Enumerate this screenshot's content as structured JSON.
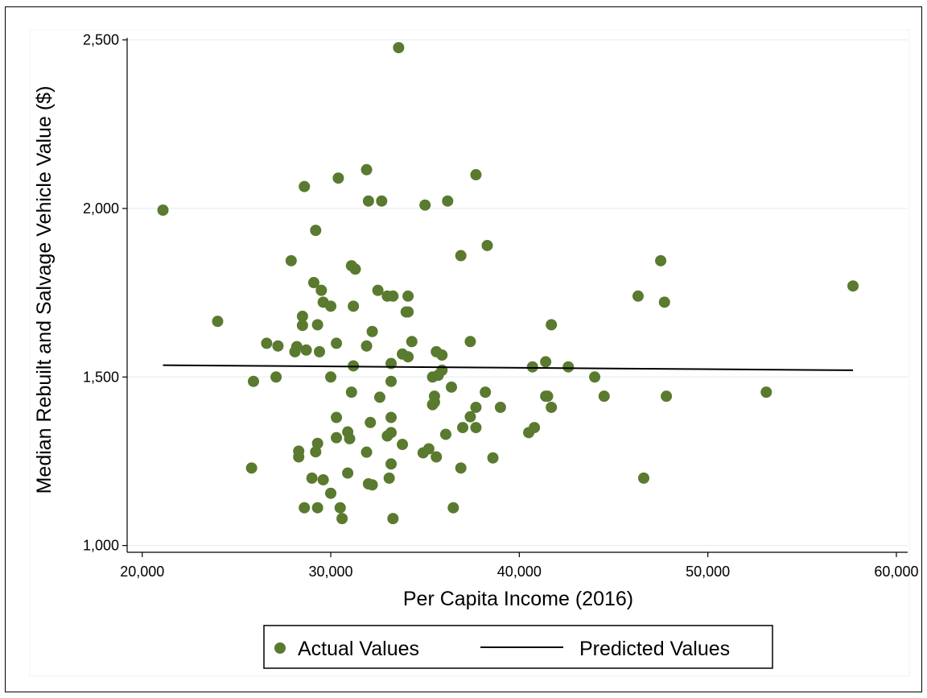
{
  "chart_data": {
    "type": "scatter",
    "xlabel": "Per Capita Income (2016)",
    "ylabel": "Median Rebuilt and Salvage Vehicle Value ($)",
    "xlim": [
      19200,
      60600
    ],
    "ylim": [
      980,
      2530
    ],
    "x_ticks": [
      20000,
      30000,
      40000,
      50000,
      60000
    ],
    "x_tick_labels": [
      "20,000",
      "30,000",
      "40,000",
      "50,000",
      "60,000"
    ],
    "y_ticks": [
      1000,
      1500,
      2000,
      2500
    ],
    "y_tick_labels": [
      "1,000",
      "1,500",
      "2,000",
      "2,500"
    ],
    "grid": true,
    "legend_position": "bottom",
    "colors": {
      "actual": "#5a7a2f",
      "predicted": "#000000",
      "grid": "#eaf2f3"
    },
    "series": [
      {
        "name": "Actual Values",
        "kind": "scatter",
        "points": [
          [
            21100,
            1995
          ],
          [
            24000,
            1665
          ],
          [
            25800,
            1230
          ],
          [
            25900,
            1487
          ],
          [
            26600,
            1600
          ],
          [
            27100,
            1500
          ],
          [
            27200,
            1592
          ],
          [
            27900,
            1845
          ],
          [
            28100,
            1575
          ],
          [
            28200,
            1590
          ],
          [
            28300,
            1263
          ],
          [
            28300,
            1280
          ],
          [
            28500,
            1680
          ],
          [
            28500,
            1653
          ],
          [
            28600,
            1112
          ],
          [
            28600,
            2065
          ],
          [
            28700,
            1580
          ],
          [
            29000,
            1200
          ],
          [
            29100,
            1780
          ],
          [
            29200,
            1935
          ],
          [
            29200,
            1278
          ],
          [
            29300,
            1112
          ],
          [
            29300,
            1655
          ],
          [
            29300,
            1303
          ],
          [
            29400,
            1575
          ],
          [
            29500,
            1757
          ],
          [
            29600,
            1195
          ],
          [
            29600,
            1722
          ],
          [
            30000,
            1500
          ],
          [
            30000,
            1710
          ],
          [
            30000,
            1155
          ],
          [
            30300,
            1380
          ],
          [
            30300,
            1320
          ],
          [
            30300,
            1600
          ],
          [
            30400,
            2090
          ],
          [
            30500,
            1112
          ],
          [
            30600,
            1080
          ],
          [
            30900,
            1215
          ],
          [
            30900,
            1337
          ],
          [
            31000,
            1317
          ],
          [
            31100,
            1455
          ],
          [
            31100,
            1830
          ],
          [
            31200,
            1710
          ],
          [
            31200,
            1533
          ],
          [
            31300,
            1820
          ],
          [
            31900,
            1277
          ],
          [
            31900,
            2115
          ],
          [
            31900,
            1592
          ],
          [
            32000,
            1183
          ],
          [
            32000,
            2022
          ],
          [
            32100,
            1365
          ],
          [
            32200,
            1180
          ],
          [
            32200,
            1635
          ],
          [
            32500,
            1757
          ],
          [
            32600,
            1440
          ],
          [
            32700,
            2022
          ],
          [
            33000,
            1740
          ],
          [
            33000,
            1325
          ],
          [
            33100,
            1200
          ],
          [
            33200,
            1487
          ],
          [
            33200,
            1242
          ],
          [
            33200,
            1335
          ],
          [
            33200,
            1380
          ],
          [
            33200,
            1540
          ],
          [
            33300,
            1740
          ],
          [
            33300,
            1080
          ],
          [
            33600,
            2477
          ],
          [
            33800,
            1300
          ],
          [
            33800,
            1568
          ],
          [
            34000,
            1693
          ],
          [
            34100,
            1693
          ],
          [
            34100,
            1740
          ],
          [
            34100,
            1560
          ],
          [
            34300,
            1605
          ],
          [
            34900,
            1275
          ],
          [
            35000,
            2010
          ],
          [
            35200,
            1287
          ],
          [
            35400,
            1418
          ],
          [
            35400,
            1500
          ],
          [
            35500,
            1425
          ],
          [
            35500,
            1443
          ],
          [
            35600,
            1575
          ],
          [
            35600,
            1263
          ],
          [
            35700,
            1505
          ],
          [
            35900,
            1520
          ],
          [
            35900,
            1565
          ],
          [
            36100,
            1330
          ],
          [
            36200,
            2022
          ],
          [
            36400,
            1470
          ],
          [
            36500,
            1112
          ],
          [
            36900,
            1230
          ],
          [
            36900,
            1860
          ],
          [
            37000,
            1350
          ],
          [
            37400,
            1382
          ],
          [
            37400,
            1605
          ],
          [
            37700,
            1350
          ],
          [
            37700,
            1410
          ],
          [
            37700,
            2100
          ],
          [
            38200,
            1455
          ],
          [
            38300,
            1890
          ],
          [
            38600,
            1260
          ],
          [
            39000,
            1410
          ],
          [
            40500,
            1335
          ],
          [
            40700,
            1530
          ],
          [
            40800,
            1350
          ],
          [
            41400,
            1443
          ],
          [
            41400,
            1545
          ],
          [
            41500,
            1443
          ],
          [
            41700,
            1655
          ],
          [
            41700,
            1410
          ],
          [
            42600,
            1530
          ],
          [
            44000,
            1500
          ],
          [
            44500,
            1443
          ],
          [
            46300,
            1740
          ],
          [
            46600,
            1200
          ],
          [
            47500,
            1845
          ],
          [
            47700,
            1722
          ],
          [
            47800,
            1443
          ],
          [
            53100,
            1455
          ],
          [
            57700,
            1770
          ]
        ]
      },
      {
        "name": "Predicted Values",
        "kind": "line",
        "points": [
          [
            21100,
            1535
          ],
          [
            57700,
            1520
          ]
        ]
      }
    ]
  }
}
